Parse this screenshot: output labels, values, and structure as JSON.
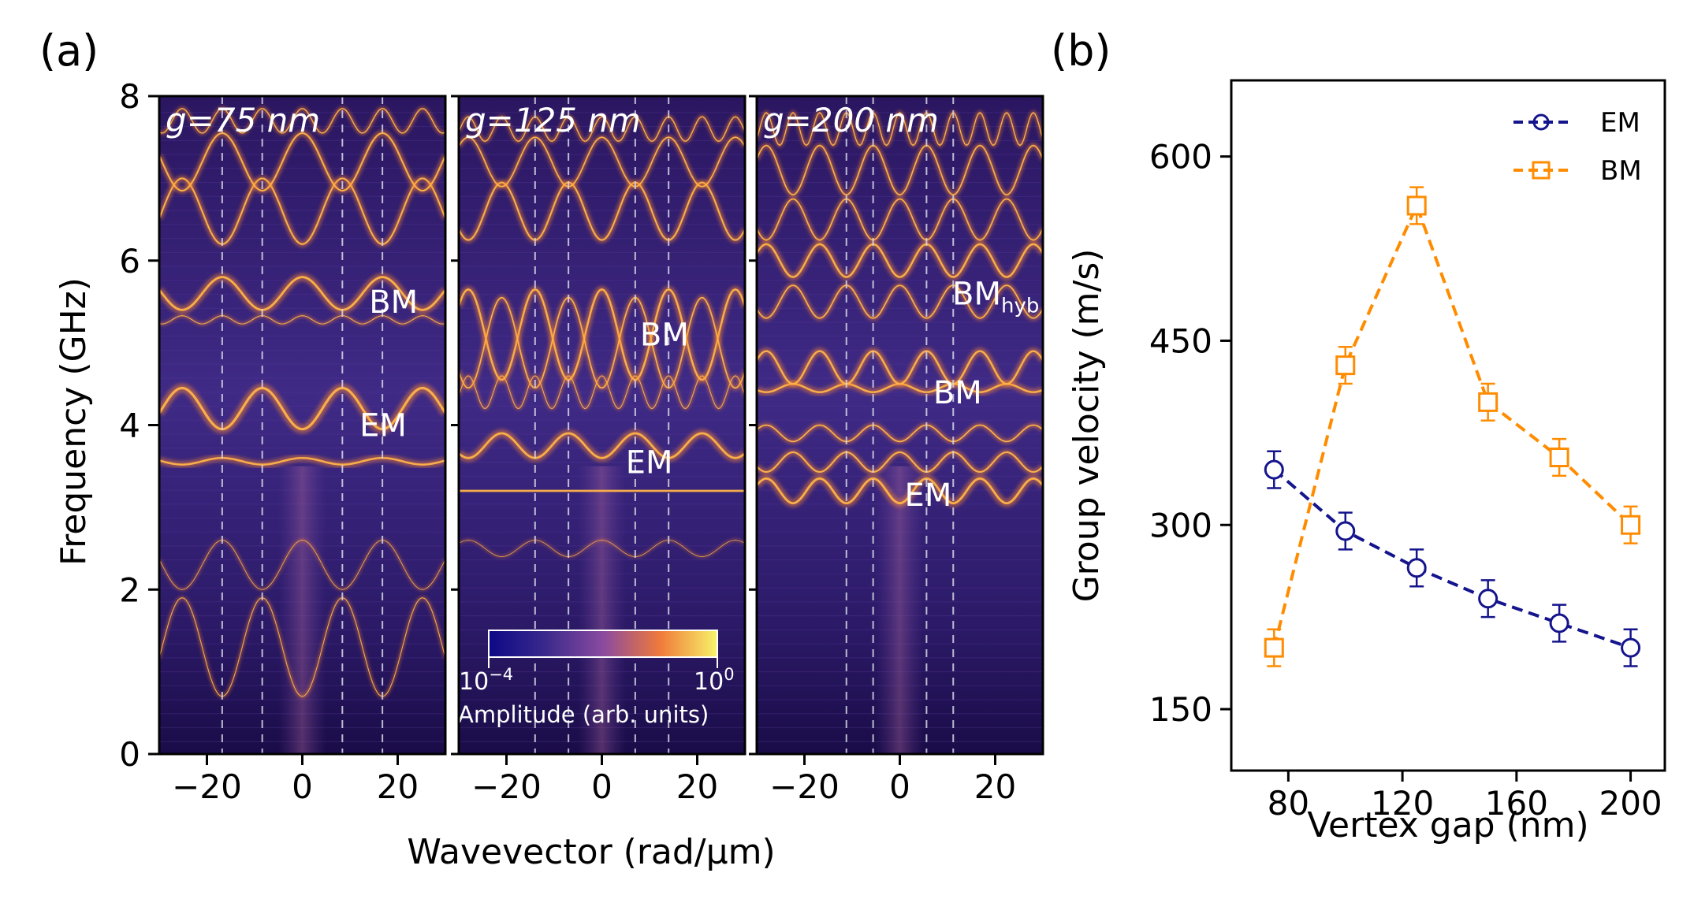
{
  "panel_labels": {
    "a": "(a)",
    "b": "(b)"
  },
  "colors": {
    "em": "#14148c",
    "bm": "#ff8c00",
    "axis": "#000000",
    "map_dark": "#12073a",
    "map_mid": "#6a3ea8",
    "map_bright": "#ff9a3c",
    "map_max": "#f7f36a"
  },
  "chart_data": [
    {
      "type": "heatmap",
      "title": "",
      "xlabel": "Wavevector (rad/µm)",
      "ylabel": "Frequency (GHz)",
      "xlim": [
        -30,
        30
      ],
      "ylim": [
        0,
        8
      ],
      "xticks": [
        "−20",
        "0",
        "20"
      ],
      "xtick_values": [
        -20,
        0,
        20
      ],
      "yticks": [
        "0",
        "2",
        "4",
        "6",
        "8"
      ],
      "ytick_values": [
        0,
        2,
        4,
        6,
        8
      ],
      "colorbar": {
        "label": "Amplitude (arb. units)",
        "min_base": "10",
        "min_exp": "−4",
        "max_base": "10",
        "max_exp": "0"
      },
      "panels": [
        {
          "label": "g=75 nm",
          "guide_lines": [
            -16.8,
            -8.4,
            8.4,
            16.8
          ],
          "modes": [
            {
              "text": "BM",
              "sub": "",
              "k": 14,
              "f": 5.5
            },
            {
              "text": "EM",
              "sub": "",
              "k": 12,
              "f": 4.0
            }
          ],
          "bands": [
            {
              "f": 4.2,
              "a": 0.25,
              "p": 16.8,
              "s": -1,
              "lw": 4.5
            },
            {
              "f": 3.56,
              "a": 0.04,
              "p": 16.8,
              "s": 1,
              "lw": 3.5
            },
            {
              "f": 5.6,
              "a": 0.2,
              "p": 16.8,
              "s": 1,
              "lw": 4
            },
            {
              "f": 5.28,
              "a": 0.05,
              "p": 8.4,
              "s": 1,
              "lw": 1.5
            },
            {
              "f": 6.6,
              "a": 0.4,
              "p": 16.8,
              "s": -1,
              "lw": 3
            },
            {
              "f": 7.2,
              "a": 0.35,
              "p": 16.8,
              "s": 1,
              "lw": 3
            },
            {
              "f": 1.3,
              "a": 0.6,
              "p": 16.8,
              "s": -1,
              "lw": 1.5
            },
            {
              "f": 2.3,
              "a": 0.3,
              "p": 16.8,
              "s": 1,
              "lw": 1.2
            },
            {
              "f": 7.7,
              "a": 0.15,
              "p": 8.4,
              "s": 1,
              "lw": 2
            }
          ]
        },
        {
          "label": "g=125 nm",
          "guide_lines": [
            -14.0,
            -7.0,
            7.0,
            14.0
          ],
          "modes": [
            {
              "text": "BM",
              "sub": "",
              "k": 8,
              "f": 5.1
            },
            {
              "text": "EM",
              "sub": "",
              "k": 5,
              "f": 3.55
            }
          ],
          "bands": [
            {
              "f": 3.2,
              "a": 0.0,
              "p": 14,
              "s": 1,
              "lw": 4
            },
            {
              "f": 3.75,
              "a": 0.15,
              "p": 14,
              "s": -1,
              "lw": 4
            },
            {
              "f": 5.1,
              "a": 0.55,
              "p": 14,
              "s": 1,
              "lw": 3.5
            },
            {
              "f": 5.0,
              "a": 0.55,
              "p": 14,
              "s": -1,
              "lw": 2.5
            },
            {
              "f": 4.4,
              "a": 0.2,
              "p": 7,
              "s": 1,
              "lw": 1.5
            },
            {
              "f": 6.6,
              "a": 0.35,
              "p": 14,
              "s": -1,
              "lw": 3
            },
            {
              "f": 7.2,
              "a": 0.3,
              "p": 14,
              "s": 1,
              "lw": 2.5
            },
            {
              "f": 7.6,
              "a": 0.15,
              "p": 7,
              "s": 1,
              "lw": 2
            },
            {
              "f": 2.5,
              "a": 0.1,
              "p": 14,
              "s": 1,
              "lw": 1
            }
          ]
        },
        {
          "label": "g=200 nm",
          "guide_lines": [
            -11.2,
            -5.6,
            5.6,
            11.2
          ],
          "modes": [
            {
              "text": "BM",
              "sub": "hyb",
              "k": 11,
              "f": 5.6
            },
            {
              "text": "BM",
              "sub": "",
              "k": 7,
              "f": 4.4
            },
            {
              "text": "EM",
              "sub": "",
              "k": 1,
              "f": 3.15
            }
          ],
          "bands": [
            {
              "f": 3.2,
              "a": 0.15,
              "p": 11.2,
              "s": -1,
              "lw": 4
            },
            {
              "f": 3.55,
              "a": 0.12,
              "p": 11.2,
              "s": 1,
              "lw": 3
            },
            {
              "f": 3.9,
              "a": 0.1,
              "p": 11.2,
              "s": -1,
              "lw": 2.5
            },
            {
              "f": 4.45,
              "a": 0.05,
              "p": 11.2,
              "s": 1,
              "lw": 3.5
            },
            {
              "f": 4.7,
              "a": 0.2,
              "p": 11.2,
              "s": -1,
              "lw": 3.5
            },
            {
              "f": 5.5,
              "a": 0.2,
              "p": 11.2,
              "s": 1,
              "lw": 2.5
            },
            {
              "f": 6.0,
              "a": 0.2,
              "p": 11.2,
              "s": -1,
              "lw": 3.5
            },
            {
              "f": 6.5,
              "a": 0.25,
              "p": 11.2,
              "s": 1,
              "lw": 2.5
            },
            {
              "f": 7.1,
              "a": 0.3,
              "p": 11.2,
              "s": -1,
              "lw": 2.5
            },
            {
              "f": 7.6,
              "a": 0.2,
              "p": 5.6,
              "s": 1,
              "lw": 2
            }
          ]
        }
      ]
    },
    {
      "type": "line",
      "title": "",
      "xlabel": "Vertex gap (nm)",
      "ylabel": "Group velocity (m/s)",
      "xlim": [
        60,
        212
      ],
      "ylim": [
        100,
        662
      ],
      "xticks": [
        80,
        120,
        160,
        200
      ],
      "yticks": [
        150,
        300,
        450,
        600
      ],
      "legend_position": "top-right",
      "x": [
        75,
        100,
        125,
        150,
        175,
        200
      ],
      "series": [
        {
          "name": "EM",
          "marker": "circle",
          "values": [
            345,
            295,
            265,
            240,
            220,
            200
          ],
          "errors": [
            15,
            15,
            15,
            15,
            15,
            15
          ]
        },
        {
          "name": "BM",
          "marker": "square",
          "values": [
            200,
            430,
            560,
            400,
            355,
            300
          ],
          "errors": [
            15,
            15,
            15,
            15,
            15,
            15
          ]
        }
      ]
    }
  ]
}
